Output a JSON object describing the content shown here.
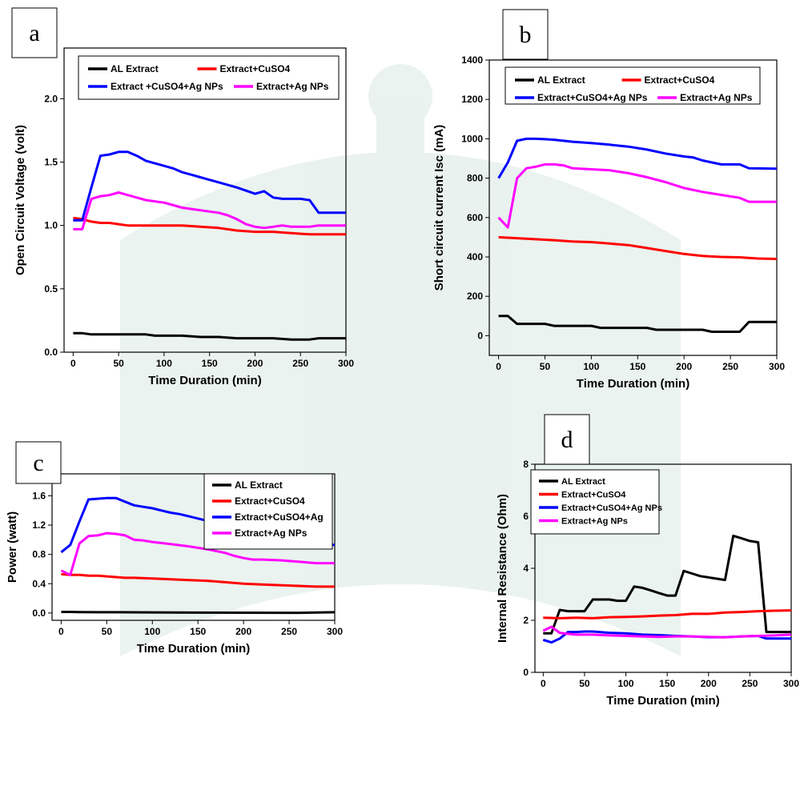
{
  "chart_data": [
    {
      "type": "line",
      "panel": "a",
      "xlabel": "Time Duration (min)",
      "ylabel": "Open Circuit Voltage (volt)",
      "xlim": [
        -10,
        300
      ],
      "ylim": [
        0,
        2.4
      ],
      "xticks": [
        0,
        50,
        100,
        150,
        200,
        250,
        300
      ],
      "yticks": [
        0.0,
        0.5,
        1.0,
        1.5,
        2.0
      ],
      "ytick_labels": [
        "0.0",
        "0.5",
        "1.0",
        "1.5",
        "2.0"
      ],
      "legend_placement": "top-left, two columns",
      "series": [
        {
          "name": "AL Extract",
          "color": "#000000",
          "x": [
            0,
            10,
            20,
            30,
            40,
            50,
            60,
            70,
            80,
            90,
            100,
            120,
            140,
            160,
            180,
            200,
            220,
            240,
            260,
            270,
            300
          ],
          "y": [
            0.15,
            0.15,
            0.14,
            0.14,
            0.14,
            0.14,
            0.14,
            0.14,
            0.14,
            0.13,
            0.13,
            0.13,
            0.12,
            0.12,
            0.11,
            0.11,
            0.11,
            0.1,
            0.1,
            0.11,
            0.11
          ]
        },
        {
          "name": "Extract+CuSO4",
          "color": "#ff0000",
          "x": [
            0,
            10,
            20,
            30,
            40,
            50,
            60,
            70,
            80,
            100,
            120,
            140,
            160,
            180,
            200,
            220,
            240,
            260,
            280,
            300
          ],
          "y": [
            1.06,
            1.05,
            1.03,
            1.02,
            1.02,
            1.01,
            1.0,
            1.0,
            1.0,
            1.0,
            1.0,
            0.99,
            0.98,
            0.96,
            0.95,
            0.95,
            0.94,
            0.93,
            0.93,
            0.93
          ]
        },
        {
          "name": "Extract +CuSO4+Ag NPs",
          "color": "#0000ff",
          "x": [
            0,
            10,
            20,
            30,
            40,
            50,
            60,
            70,
            80,
            90,
            100,
            110,
            120,
            130,
            140,
            160,
            180,
            200,
            210,
            220,
            230,
            240,
            250,
            260,
            270,
            300
          ],
          "y": [
            1.04,
            1.04,
            1.3,
            1.55,
            1.56,
            1.58,
            1.58,
            1.55,
            1.51,
            1.49,
            1.47,
            1.45,
            1.42,
            1.4,
            1.38,
            1.34,
            1.3,
            1.25,
            1.27,
            1.22,
            1.21,
            1.21,
            1.21,
            1.2,
            1.1,
            1.1
          ]
        },
        {
          "name": "Extract+Ag NPs",
          "color": "#ff00ff",
          "x": [
            0,
            10,
            20,
            30,
            40,
            50,
            60,
            70,
            80,
            90,
            100,
            110,
            120,
            130,
            140,
            150,
            160,
            170,
            180,
            190,
            200,
            210,
            220,
            230,
            240,
            250,
            260,
            270,
            300
          ],
          "y": [
            0.97,
            0.97,
            1.21,
            1.23,
            1.24,
            1.26,
            1.24,
            1.22,
            1.2,
            1.19,
            1.18,
            1.16,
            1.14,
            1.13,
            1.12,
            1.11,
            1.1,
            1.08,
            1.05,
            1.01,
            0.99,
            0.98,
            0.99,
            1.0,
            0.99,
            0.99,
            0.99,
            1.0,
            1.0
          ]
        }
      ]
    },
    {
      "type": "line",
      "panel": "b",
      "xlabel": "Time Duration (min)",
      "ylabel": "Short circuit current Isc (mA)",
      "xlim": [
        -10,
        300
      ],
      "ylim": [
        -100,
        1400
      ],
      "xticks": [
        0,
        50,
        100,
        150,
        200,
        250,
        300
      ],
      "yticks": [
        0,
        200,
        400,
        600,
        800,
        1000,
        1200,
        1400
      ],
      "ytick_labels": [
        "0",
        "200",
        "400",
        "600",
        "800",
        "1000",
        "1200",
        "1400"
      ],
      "legend_placement": "top-left, two columns",
      "series": [
        {
          "name": "AL Extract",
          "color": "#000000",
          "x": [
            0,
            10,
            20,
            30,
            40,
            50,
            60,
            100,
            110,
            160,
            170,
            220,
            230,
            260,
            270,
            300
          ],
          "y": [
            100,
            100,
            60,
            60,
            60,
            60,
            50,
            50,
            40,
            40,
            30,
            30,
            20,
            20,
            70,
            70
          ]
        },
        {
          "name": "Extract+CuSO4",
          "color": "#ff0000",
          "x": [
            0,
            20,
            40,
            60,
            80,
            100,
            120,
            140,
            160,
            180,
            200,
            220,
            240,
            260,
            280,
            300
          ],
          "y": [
            500,
            495,
            490,
            485,
            478,
            475,
            468,
            460,
            445,
            430,
            415,
            405,
            400,
            398,
            392,
            390
          ]
        },
        {
          "name": "Extract+CuSO4+Ag NPs",
          "color": "#0000ff",
          "x": [
            0,
            10,
            20,
            30,
            40,
            50,
            60,
            70,
            80,
            100,
            120,
            140,
            160,
            180,
            200,
            210,
            220,
            240,
            260,
            270,
            300
          ],
          "y": [
            800,
            880,
            990,
            1000,
            1000,
            998,
            995,
            990,
            985,
            978,
            970,
            960,
            945,
            925,
            910,
            905,
            890,
            870,
            870,
            850,
            848
          ]
        },
        {
          "name": "Extract+Ag NPs",
          "color": "#ff00ff",
          "x": [
            0,
            10,
            20,
            30,
            40,
            50,
            60,
            70,
            80,
            100,
            120,
            140,
            160,
            180,
            200,
            220,
            240,
            260,
            270,
            300
          ],
          "y": [
            600,
            550,
            800,
            850,
            858,
            870,
            870,
            865,
            850,
            845,
            840,
            825,
            805,
            780,
            750,
            730,
            715,
            700,
            680,
            680
          ]
        }
      ]
    },
    {
      "type": "line",
      "panel": "c",
      "xlabel": "Time Duration (min)",
      "ylabel": "Power (watt)",
      "xlim": [
        -10,
        300
      ],
      "ylim": [
        -0.1,
        1.9
      ],
      "xticks": [
        0,
        50,
        100,
        150,
        200,
        250,
        300
      ],
      "yticks": [
        0.0,
        0.4,
        0.8,
        1.2,
        1.6
      ],
      "ytick_labels": [
        "0.0",
        "0.4",
        "0.8",
        "1.2",
        "1.6"
      ],
      "legend_placement": "top-right",
      "series": [
        {
          "name": "AL Extract",
          "color": "#000000",
          "x": [
            0,
            10,
            20,
            40,
            60,
            100,
            150,
            200,
            250,
            260,
            300
          ],
          "y": [
            0.015,
            0.015,
            0.012,
            0.01,
            0.01,
            0.008,
            0.005,
            0.004,
            0.003,
            0.003,
            0.01
          ]
        },
        {
          "name": "Extract+CuSO4",
          "color": "#ff0000",
          "x": [
            0,
            10,
            20,
            30,
            40,
            50,
            60,
            70,
            80,
            100,
            120,
            140,
            160,
            180,
            200,
            220,
            240,
            260,
            280,
            300
          ],
          "y": [
            0.53,
            0.52,
            0.52,
            0.51,
            0.51,
            0.5,
            0.49,
            0.48,
            0.48,
            0.47,
            0.46,
            0.45,
            0.44,
            0.42,
            0.4,
            0.39,
            0.38,
            0.37,
            0.36,
            0.36
          ]
        },
        {
          "name": "Extract+CuSO4+Ag",
          "color": "#0000ff",
          "x": [
            0,
            10,
            20,
            30,
            40,
            50,
            60,
            70,
            80,
            90,
            100,
            110,
            120,
            130,
            140,
            160,
            180,
            200,
            210,
            220,
            230,
            240,
            250,
            260,
            270,
            300
          ],
          "y": [
            0.83,
            0.93,
            1.25,
            1.55,
            1.56,
            1.57,
            1.57,
            1.52,
            1.47,
            1.45,
            1.43,
            1.4,
            1.37,
            1.35,
            1.32,
            1.26,
            1.2,
            1.13,
            1.14,
            1.09,
            1.07,
            1.05,
            1.05,
            1.05,
            0.94,
            0.93
          ]
        },
        {
          "name": "Extract+Ag NPs",
          "color": "#ff00ff",
          "x": [
            0,
            10,
            20,
            30,
            40,
            50,
            60,
            70,
            80,
            90,
            100,
            120,
            140,
            160,
            180,
            190,
            200,
            210,
            220,
            240,
            260,
            280,
            300
          ],
          "y": [
            0.58,
            0.52,
            0.95,
            1.05,
            1.06,
            1.09,
            1.08,
            1.06,
            1.0,
            0.99,
            0.97,
            0.94,
            0.91,
            0.87,
            0.82,
            0.78,
            0.75,
            0.73,
            0.73,
            0.72,
            0.7,
            0.68,
            0.68
          ]
        }
      ]
    },
    {
      "type": "line",
      "panel": "d",
      "xlabel": "Time Duration (min)",
      "ylabel": "Internal Resistance (Ohm)",
      "xlim": [
        -10,
        300
      ],
      "ylim": [
        0,
        8
      ],
      "xticks": [
        0,
        50,
        100,
        150,
        200,
        250,
        300
      ],
      "yticks": [
        0,
        2,
        4,
        6,
        8
      ],
      "ytick_labels": [
        "0",
        "2",
        "4",
        "6",
        "8"
      ],
      "legend_placement": "top-left",
      "series": [
        {
          "name": "AL Extract",
          "color": "#000000",
          "x": [
            0,
            10,
            20,
            30,
            40,
            50,
            60,
            70,
            80,
            90,
            100,
            110,
            120,
            130,
            140,
            150,
            160,
            170,
            180,
            190,
            200,
            210,
            220,
            230,
            240,
            250,
            260,
            270,
            300
          ],
          "y": [
            1.5,
            1.5,
            2.4,
            2.35,
            2.35,
            2.35,
            2.8,
            2.8,
            2.8,
            2.75,
            2.75,
            3.3,
            3.25,
            3.15,
            3.05,
            2.95,
            2.95,
            3.9,
            3.8,
            3.7,
            3.65,
            3.6,
            3.55,
            5.25,
            5.15,
            5.05,
            5.0,
            1.55,
            1.55
          ]
        },
        {
          "name": "Extract+CuSO4",
          "color": "#ff0000",
          "x": [
            0,
            20,
            40,
            60,
            80,
            100,
            120,
            140,
            160,
            180,
            200,
            220,
            240,
            260,
            280,
            300
          ],
          "y": [
            2.1,
            2.08,
            2.1,
            2.08,
            2.12,
            2.13,
            2.15,
            2.18,
            2.2,
            2.25,
            2.25,
            2.3,
            2.32,
            2.35,
            2.37,
            2.38
          ]
        },
        {
          "name": "Extract+CuSO4+Ag NPs",
          "color": "#0000ff",
          "x": [
            0,
            10,
            20,
            30,
            40,
            50,
            60,
            80,
            100,
            120,
            140,
            160,
            180,
            200,
            220,
            240,
            260,
            270,
            300
          ],
          "y": [
            1.25,
            1.15,
            1.3,
            1.55,
            1.55,
            1.57,
            1.57,
            1.52,
            1.5,
            1.45,
            1.43,
            1.4,
            1.38,
            1.35,
            1.35,
            1.38,
            1.4,
            1.3,
            1.3
          ]
        },
        {
          "name": "Extract+Ag NPs",
          "color": "#ff00ff",
          "x": [
            0,
            10,
            20,
            30,
            40,
            60,
            80,
            100,
            120,
            140,
            160,
            180,
            200,
            220,
            240,
            260,
            280,
            300
          ],
          "y": [
            1.6,
            1.75,
            1.52,
            1.48,
            1.45,
            1.45,
            1.42,
            1.4,
            1.38,
            1.36,
            1.38,
            1.38,
            1.36,
            1.35,
            1.38,
            1.4,
            1.42,
            1.45
          ]
        }
      ]
    }
  ]
}
